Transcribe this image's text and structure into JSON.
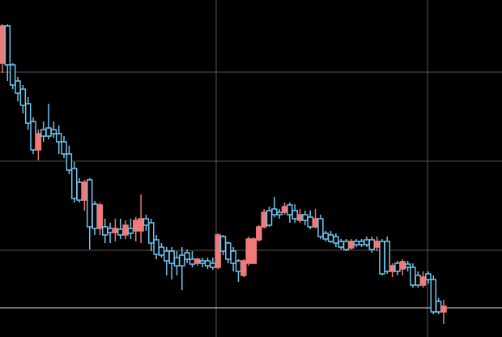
{
  "chart_data": {
    "type": "candlestick",
    "open": [
      338,
      384,
      336,
      316,
      306,
      288,
      266,
      231,
      256,
      258,
      256,
      251,
      241,
      226,
      208,
      191,
      169,
      194,
      164,
      134,
      136,
      134,
      129,
      133,
      126,
      134,
      131,
      131,
      146,
      141,
      120,
      111,
      106,
      106,
      98,
      101,
      104,
      96,
      91,
      94,
      94,
      91,
      86,
      124,
      116,
      106,
      94,
      76,
      91,
      91,
      120,
      136,
      156,
      158,
      154,
      154,
      163,
      156,
      144,
      151,
      148,
      136,
      146,
      128,
      126,
      124,
      118,
      118,
      110,
      118,
      118,
      120,
      120,
      111,
      118,
      118,
      81,
      91,
      84,
      90,
      86,
      76,
      64,
      78,
      71,
      44,
      31
    ],
    "high": [
      386,
      386,
      338,
      321,
      311,
      296,
      271,
      256,
      266,
      288,
      266,
      261,
      248,
      236,
      216,
      196,
      194,
      196,
      168,
      166,
      146,
      141,
      146,
      146,
      144,
      146,
      148,
      176,
      151,
      146,
      126,
      116,
      111,
      111,
      106,
      111,
      108,
      106,
      98,
      98,
      98,
      98,
      128,
      126,
      118,
      111,
      96,
      96,
      124,
      123,
      138,
      158,
      161,
      173,
      158,
      166,
      166,
      164,
      158,
      156,
      156,
      158,
      151,
      131,
      131,
      128,
      121,
      121,
      121,
      121,
      121,
      124,
      124,
      124,
      121,
      124,
      91,
      94,
      96,
      94,
      91,
      81,
      81,
      81,
      76,
      48,
      46
    ],
    "low": [
      326,
      316,
      306,
      291,
      276,
      256,
      226,
      218,
      241,
      244,
      246,
      226,
      221,
      201,
      166,
      166,
      156,
      108,
      126,
      126,
      116,
      116,
      118,
      121,
      121,
      121,
      118,
      116,
      131,
      106,
      96,
      98,
      76,
      71,
      76,
      58,
      91,
      86,
      88,
      86,
      84,
      83,
      84,
      101,
      91,
      81,
      68,
      74,
      88,
      90,
      118,
      134,
      136,
      148,
      146,
      151,
      141,
      141,
      141,
      138,
      133,
      134,
      121,
      118,
      116,
      111,
      108,
      106,
      108,
      111,
      111,
      111,
      104,
      106,
      76,
      78,
      74,
      76,
      76,
      81,
      61,
      61,
      61,
      66,
      28,
      28,
      16
    ],
    "close": [
      384,
      336,
      311,
      301,
      286,
      264,
      231,
      251,
      248,
      248,
      251,
      241,
      226,
      206,
      171,
      169,
      191,
      136,
      134,
      163,
      126,
      129,
      134,
      126,
      138,
      128,
      144,
      146,
      138,
      116,
      102,
      101,
      94,
      91,
      88,
      88,
      96,
      90,
      96,
      91,
      88,
      86,
      126,
      106,
      96,
      91,
      81,
      94,
      121,
      121,
      136,
      154,
      138,
      151,
      151,
      161,
      151,
      146,
      151,
      144,
      136,
      146,
      124,
      121,
      118,
      116,
      111,
      108,
      118,
      114,
      114,
      114,
      108,
      118,
      78,
      81,
      88,
      81,
      93,
      86,
      64,
      64,
      74,
      71,
      31,
      31,
      38
    ],
    "up_color": "#f07a78",
    "down_color": "#6ec6f0",
    "xlim": [
      -0.473,
      97.37
    ],
    "xticks": [
      41.66,
      82.85
    ],
    "ylim": [
      0,
      416
    ],
    "yticks": [
      107,
      217,
      327
    ],
    "grid": true,
    "grid_color": "#555555",
    "price_line": 36,
    "price_line_color": "#e8e0c8"
  }
}
